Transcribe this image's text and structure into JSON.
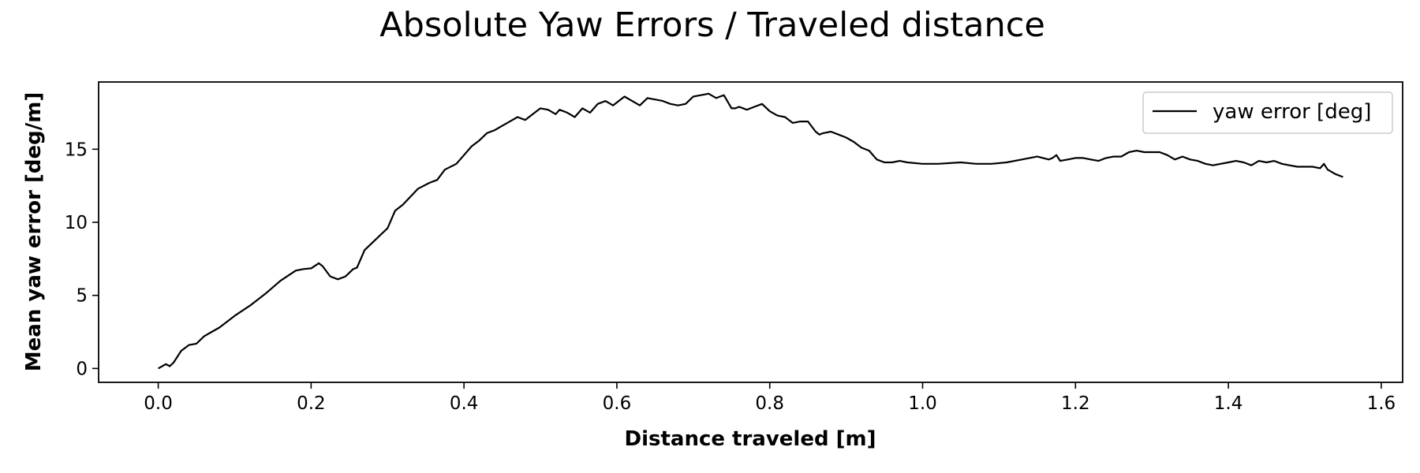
{
  "chart_data": {
    "type": "line",
    "title": "Absolute Yaw Errors / Traveled distance",
    "xlabel": "Distance traveled [m]",
    "ylabel": "Mean yaw error [deg/m]",
    "xlim": [
      -0.078,
      1.628
    ],
    "ylim": [
      -0.95,
      19.6
    ],
    "xticks": [
      0.0,
      0.2,
      0.4,
      0.6,
      0.8,
      1.0,
      1.2,
      1.4,
      1.6
    ],
    "xtick_labels": [
      "0.0",
      "0.2",
      "0.4",
      "0.6",
      "0.8",
      "1.0",
      "1.2",
      "1.4",
      "1.6"
    ],
    "yticks": [
      0,
      5,
      10,
      15
    ],
    "ytick_labels": [
      "0",
      "5",
      "10",
      "15"
    ],
    "grid": false,
    "legend_position": "top-right",
    "series": [
      {
        "name": "yaw error [deg]",
        "color": "#000000",
        "x": [
          0.0,
          0.01,
          0.015,
          0.02,
          0.03,
          0.04,
          0.05,
          0.06,
          0.07,
          0.08,
          0.1,
          0.12,
          0.14,
          0.16,
          0.18,
          0.19,
          0.2,
          0.21,
          0.215,
          0.225,
          0.235,
          0.245,
          0.255,
          0.26,
          0.27,
          0.28,
          0.29,
          0.3,
          0.31,
          0.32,
          0.34,
          0.355,
          0.365,
          0.375,
          0.39,
          0.4,
          0.41,
          0.42,
          0.43,
          0.44,
          0.45,
          0.46,
          0.47,
          0.48,
          0.485,
          0.49,
          0.5,
          0.51,
          0.52,
          0.525,
          0.535,
          0.545,
          0.555,
          0.565,
          0.575,
          0.585,
          0.595,
          0.6,
          0.61,
          0.62,
          0.63,
          0.64,
          0.65,
          0.66,
          0.67,
          0.68,
          0.69,
          0.7,
          0.71,
          0.72,
          0.73,
          0.735,
          0.74,
          0.75,
          0.755,
          0.76,
          0.77,
          0.78,
          0.79,
          0.8,
          0.81,
          0.82,
          0.83,
          0.84,
          0.85,
          0.86,
          0.865,
          0.87,
          0.88,
          0.89,
          0.9,
          0.91,
          0.92,
          0.93,
          0.94,
          0.95,
          0.96,
          0.97,
          0.98,
          1.0,
          1.02,
          1.05,
          1.07,
          1.09,
          1.11,
          1.13,
          1.15,
          1.165,
          1.17,
          1.175,
          1.18,
          1.19,
          1.2,
          1.21,
          1.22,
          1.23,
          1.24,
          1.25,
          1.26,
          1.27,
          1.28,
          1.29,
          1.3,
          1.31,
          1.32,
          1.33,
          1.34,
          1.35,
          1.36,
          1.37,
          1.38,
          1.39,
          1.4,
          1.41,
          1.42,
          1.43,
          1.44,
          1.45,
          1.46,
          1.47,
          1.48,
          1.49,
          1.5,
          1.51,
          1.52,
          1.525,
          1.53,
          1.54,
          1.55
        ],
        "y": [
          0.0,
          0.3,
          0.15,
          0.4,
          1.2,
          1.6,
          1.7,
          2.2,
          2.5,
          2.8,
          3.6,
          4.3,
          5.1,
          6.0,
          6.7,
          6.8,
          6.85,
          7.2,
          7.0,
          6.3,
          6.1,
          6.3,
          6.8,
          6.9,
          8.1,
          8.6,
          9.1,
          9.6,
          10.8,
          11.2,
          12.3,
          12.7,
          12.9,
          13.6,
          14.0,
          14.6,
          15.2,
          15.6,
          16.1,
          16.3,
          16.6,
          16.9,
          17.2,
          17.0,
          17.2,
          17.4,
          17.8,
          17.7,
          17.4,
          17.7,
          17.5,
          17.2,
          17.8,
          17.5,
          18.1,
          18.3,
          18.0,
          18.2,
          18.6,
          18.3,
          18.0,
          18.5,
          18.4,
          18.3,
          18.1,
          18.0,
          18.1,
          18.6,
          18.7,
          18.8,
          18.5,
          18.6,
          18.7,
          17.8,
          17.8,
          17.9,
          17.7,
          17.9,
          18.1,
          17.6,
          17.3,
          17.2,
          16.8,
          16.9,
          16.9,
          16.2,
          16.0,
          16.1,
          16.2,
          16.0,
          15.8,
          15.5,
          15.1,
          14.9,
          14.3,
          14.1,
          14.1,
          14.2,
          14.1,
          14.0,
          14.0,
          14.1,
          14.0,
          14.0,
          14.1,
          14.3,
          14.5,
          14.3,
          14.4,
          14.6,
          14.2,
          14.3,
          14.4,
          14.4,
          14.3,
          14.2,
          14.4,
          14.5,
          14.5,
          14.8,
          14.9,
          14.8,
          14.8,
          14.8,
          14.6,
          14.3,
          14.5,
          14.3,
          14.2,
          14.0,
          13.9,
          14.0,
          14.1,
          14.2,
          14.1,
          13.9,
          14.2,
          14.1,
          14.2,
          14.0,
          13.9,
          13.8,
          13.8,
          13.8,
          13.7,
          14.0,
          13.6,
          13.3,
          13.1
        ]
      }
    ]
  }
}
